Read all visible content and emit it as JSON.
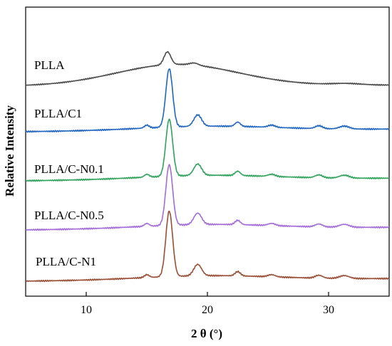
{
  "chart_data": {
    "type": "line",
    "title": "",
    "xlabel": "2 θ (°)",
    "ylabel": "Relative Intensity",
    "xlim": [
      5,
      35
    ],
    "xticks": [
      10,
      20,
      30
    ],
    "y_tick_labels": false,
    "grid": false,
    "legend": "none",
    "series": [
      {
        "name": "PLLA",
        "color": "#4a4a4a"
      },
      {
        "name": "PLLA/C1",
        "color": "#1f66c4"
      },
      {
        "name": "PLLA/C-N0.1",
        "color": "#2ea35a"
      },
      {
        "name": "PLLA/C-N0.5",
        "color": "#a36bdc"
      },
      {
        "name": "PLLA/C-N1",
        "color": "#9a4e34"
      }
    ],
    "peaks_2theta": [
      15.0,
      16.8,
      19.2,
      22.5,
      25.3,
      29.2,
      31.3
    ]
  }
}
